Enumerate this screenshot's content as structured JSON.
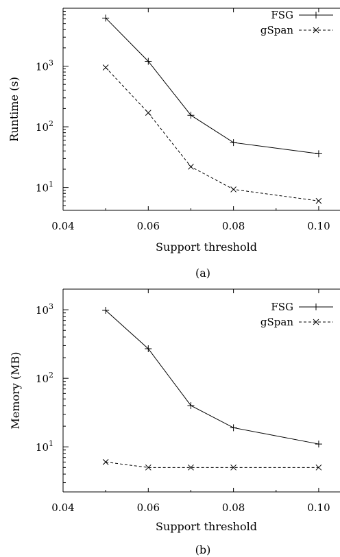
{
  "chart_data": [
    {
      "id": "a",
      "type": "line",
      "caption": "(a)",
      "xlabel": "Support threshold",
      "ylabel": "Runtime (s)",
      "yscale": "log",
      "xlim": [
        0.04,
        0.105
      ],
      "ylim": [
        4.2,
        9000
      ],
      "xticks": [
        0.04,
        0.06,
        0.08,
        0.1
      ],
      "xtick_labels": [
        "0.04",
        "0.06",
        "0.08",
        "0.10"
      ],
      "yticks": [
        10,
        100,
        1000
      ],
      "ytick_labels": [
        "10^1",
        "10^2",
        "10^3"
      ],
      "legend": "top-right",
      "grid": false,
      "series": [
        {
          "name": "FSG",
          "style": "solid",
          "marker": "+",
          "x": [
            0.05,
            0.06,
            0.07,
            0.08,
            0.1
          ],
          "y": [
            6200,
            1200,
            155,
            55,
            36
          ]
        },
        {
          "name": "gSpan",
          "style": "dashed",
          "marker": "x",
          "x": [
            0.05,
            0.06,
            0.07,
            0.08,
            0.1
          ],
          "y": [
            950,
            170,
            22,
            9.3,
            6
          ]
        }
      ]
    },
    {
      "id": "b",
      "type": "line",
      "caption": "(b)",
      "xlabel": "Support threshold",
      "ylabel": "Memory (MB)",
      "yscale": "log",
      "xlim": [
        0.04,
        0.105
      ],
      "ylim": [
        2.2,
        2000
      ],
      "xticks": [
        0.04,
        0.06,
        0.08,
        0.1
      ],
      "xtick_labels": [
        "0.04",
        "0.06",
        "0.08",
        "0.10"
      ],
      "yticks": [
        10,
        100,
        1000
      ],
      "ytick_labels": [
        "10^1",
        "10^2",
        "10^3"
      ],
      "legend": "top-right",
      "grid": false,
      "series": [
        {
          "name": "FSG",
          "style": "solid",
          "marker": "+",
          "x": [
            0.05,
            0.06,
            0.07,
            0.08,
            0.1
          ],
          "y": [
            980,
            270,
            40,
            19,
            11
          ]
        },
        {
          "name": "gSpan",
          "style": "dashed",
          "marker": "x",
          "x": [
            0.05,
            0.06,
            0.07,
            0.08,
            0.1
          ],
          "y": [
            6,
            5,
            5,
            5,
            5
          ]
        }
      ]
    }
  ]
}
